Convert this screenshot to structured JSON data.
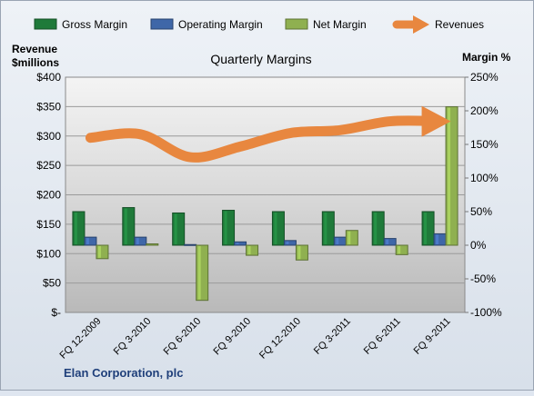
{
  "chart_data": {
    "type": "bar",
    "title": "Quarterly Margins",
    "company": "Elan Corporation, plc",
    "y_left_label_line1": "Revenue",
    "y_left_label_line2": "$millions",
    "y_right_label": "Margin %",
    "y_left_range": [
      0,
      400
    ],
    "y_right_range": [
      -100,
      250
    ],
    "y_left_ticks": [
      "$-",
      "$50",
      "$100",
      "$150",
      "$200",
      "$250",
      "$300",
      "$350",
      "$400"
    ],
    "y_right_ticks": [
      "-100%",
      "-50%",
      "0%",
      "50%",
      "100%",
      "150%",
      "200%",
      "250%"
    ],
    "categories": [
      "FQ 12-2009",
      "FQ 3-2010",
      "FQ 6-2010",
      "FQ 9-2010",
      "FQ 12-2010",
      "FQ 3-2011",
      "FQ 6-2011",
      "FQ 9-2011"
    ],
    "series": [
      {
        "name": "Gross Margin",
        "type": "bar",
        "axis": "right",
        "color": "#1f7a3a",
        "values": [
          50,
          56,
          48,
          52,
          50,
          50,
          50,
          50
        ]
      },
      {
        "name": "Operating Margin",
        "type": "bar",
        "axis": "right",
        "color": "#3f67a8",
        "values": [
          12,
          12,
          1,
          5,
          7,
          12,
          10,
          17
        ]
      },
      {
        "name": "Net Margin",
        "type": "bar",
        "axis": "right",
        "color": "#8fb050",
        "values": [
          -20,
          2,
          -82,
          -15,
          -22,
          22,
          -14,
          206
        ]
      },
      {
        "name": "Revenues",
        "type": "line",
        "axis": "left",
        "color": "#e8873f",
        "values": [
          297,
          303,
          264,
          282,
          305,
          310,
          325,
          325
        ]
      }
    ],
    "grid": true,
    "legend_position": "top"
  },
  "legend_items": [
    {
      "label": "Gross Margin",
      "color": "#1f7a3a",
      "kind": "bar"
    },
    {
      "label": "Operating Margin",
      "color": "#3f67a8",
      "kind": "bar"
    },
    {
      "label": "Net Margin",
      "color": "#8fb050",
      "kind": "bar"
    },
    {
      "label": "Revenues",
      "color": "#e8873f",
      "kind": "arrow"
    }
  ]
}
